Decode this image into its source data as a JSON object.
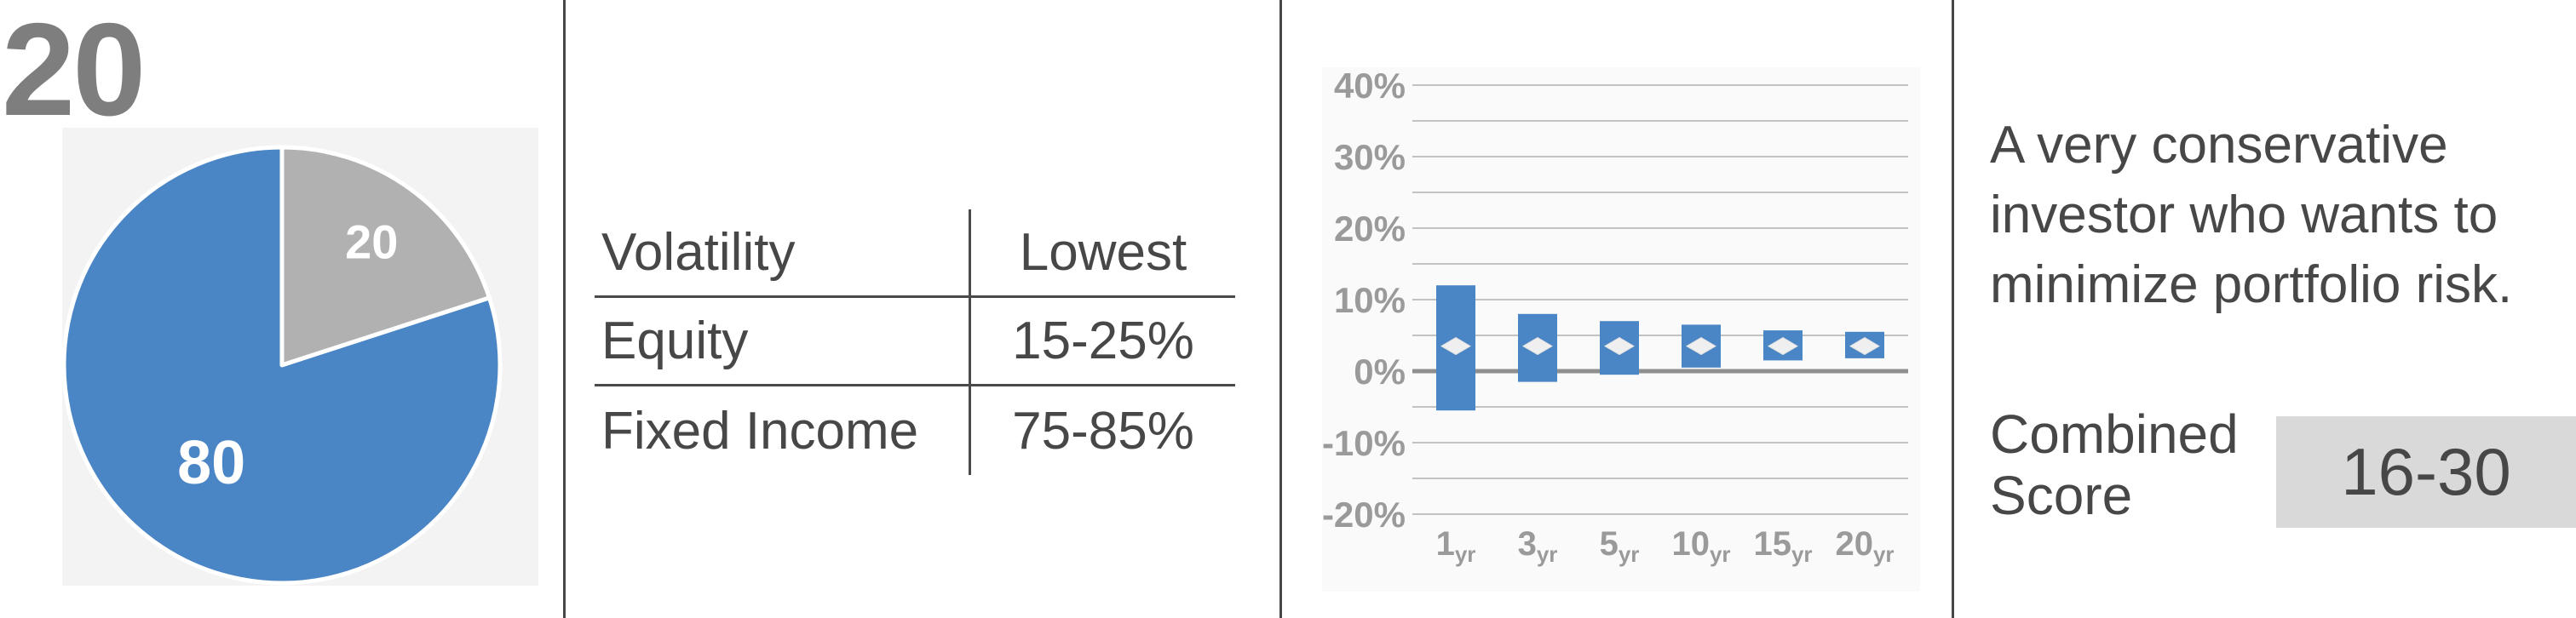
{
  "page": {
    "big_number": "20"
  },
  "colors": {
    "accent_blue": "#4a85c5",
    "slice_gray": "#b1b1b1",
    "big_number_gray": "#7e7e7e",
    "text_dark": "#474747",
    "divider": "#474747",
    "pie_panel_bg": "#f3f3f3",
    "chart_panel_bg": "#fafafa",
    "gridline": "#c2c2c2",
    "zero_line": "#8f8f8f",
    "axis_label": "#9a9a9a",
    "diamond_fill": "#efefef",
    "score_box_bg": "#d9d9d9",
    "pie_label_white": "#ffffff"
  },
  "allocation_table": {
    "header": [
      "Volatility",
      "Lowest"
    ],
    "rows": [
      [
        "Equity",
        "15-25%"
      ],
      [
        "Fixed Income",
        "75-85%"
      ]
    ]
  },
  "profile": {
    "description_lines": [
      "A very conservative",
      "investor who wants to",
      "minimize portfolio risk."
    ],
    "combined_score_label_lines": [
      "Combined",
      "Score"
    ],
    "combined_score_value": "16-30"
  },
  "chart_data": [
    {
      "type": "pie",
      "title": "",
      "direction": "clockwise",
      "start_angle_deg": 0,
      "slices": [
        {
          "label": "20",
          "value": 20,
          "color": "#b1b1b1"
        },
        {
          "label": "80",
          "value": 80,
          "color": "#4a85c5"
        }
      ],
      "labels_color": "#ffffff",
      "separator_color": "#ffffff"
    },
    {
      "type": "bar",
      "subtype": "floating-range",
      "title": "",
      "categories": [
        "1",
        "3",
        "5",
        "10",
        "15",
        "20"
      ],
      "category_unit": "yr",
      "series": [
        {
          "name": "return-range-low",
          "values": [
            -5.5,
            -1.5,
            -0.5,
            0.5,
            1.5,
            1.8
          ]
        },
        {
          "name": "return-range-high",
          "values": [
            12.0,
            8.0,
            7.0,
            6.5,
            5.7,
            5.5
          ]
        },
        {
          "name": "average-marker",
          "marker": "diamond",
          "values": [
            3.5,
            3.5,
            3.5,
            3.5,
            3.5,
            3.5
          ]
        }
      ],
      "ylim": [
        -20,
        40
      ],
      "y_gridline_step_pct": 5,
      "y_label_step_pct": 10,
      "y_tick_labels": [
        "40%",
        "30%",
        "20%",
        "10%",
        "0%",
        "-10%",
        "-20%"
      ],
      "grid": true,
      "legend": "none"
    }
  ]
}
